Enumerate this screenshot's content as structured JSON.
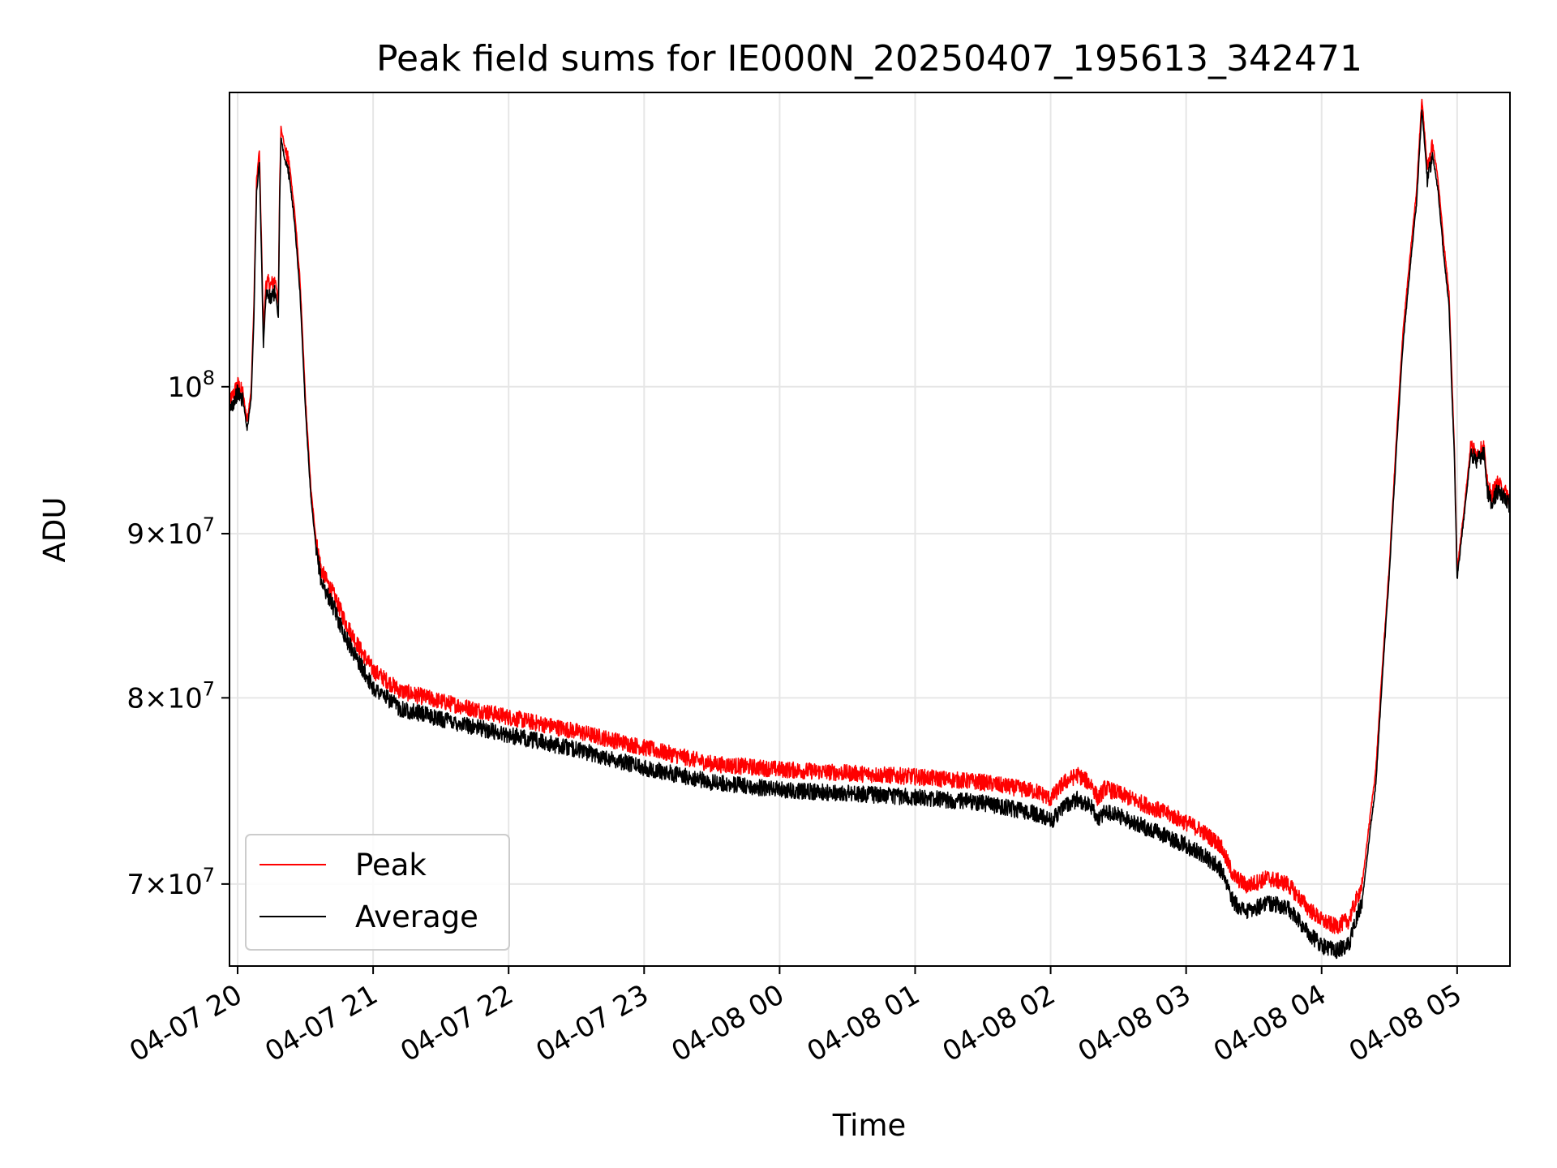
{
  "chart_data": {
    "type": "line",
    "title": "Peak field sums for IE000N_20250407_195613_342471",
    "xlabel": "Time",
    "ylabel": "ADU",
    "x_tick_labels": [
      "04-07 20",
      "04-07 21",
      "04-07 22",
      "04-07 23",
      "04-08 00",
      "04-08 01",
      "04-08 02",
      "04-08 03",
      "04-08 04",
      "04-08 05"
    ],
    "x_ticks_hours": [
      0,
      1,
      2,
      3,
      4,
      5,
      6,
      7,
      8,
      9
    ],
    "y_ticks": [
      {
        "value": 70000000,
        "mant": "7",
        "exp": "7"
      },
      {
        "value": 80000000,
        "mant": "8",
        "exp": "7"
      },
      {
        "value": 90000000,
        "mant": "9",
        "exp": "7"
      },
      {
        "value": 100000000,
        "mant": "",
        "exp": "8"
      }
    ],
    "y_scale": "log",
    "xlim_hours": [
      -0.06,
      9.39
    ],
    "ylim": [
      66000000,
      123500000
    ],
    "grid": true,
    "legend_position": "lower-left",
    "x_axis_base": "04-07 20:00",
    "series": [
      {
        "name": "Peak",
        "color": "#ff0000",
        "points": [
          [
            -0.06,
            98.8
          ],
          [
            0.0,
            100.2
          ],
          [
            0.04,
            99.5
          ],
          [
            0.07,
            97.6
          ],
          [
            0.1,
            99.8
          ],
          [
            0.12,
            106
          ],
          [
            0.14,
            116
          ],
          [
            0.16,
            118.5
          ],
          [
            0.18,
            109
          ],
          [
            0.19,
            104
          ],
          [
            0.21,
            108
          ],
          [
            0.24,
            107.5
          ],
          [
            0.28,
            108
          ],
          [
            0.3,
            106
          ],
          [
            0.31,
            115
          ],
          [
            0.32,
            120.5
          ],
          [
            0.36,
            118
          ],
          [
            0.38,
            117.5
          ],
          [
            0.42,
            113.5
          ],
          [
            0.46,
            108
          ],
          [
            0.5,
            99.2
          ],
          [
            0.54,
            93
          ],
          [
            0.58,
            89.5
          ],
          [
            0.62,
            87.6
          ],
          [
            0.7,
            86.3
          ],
          [
            0.8,
            84.4
          ],
          [
            0.9,
            82.9
          ],
          [
            1.0,
            81.6
          ],
          [
            1.2,
            80.4
          ],
          [
            1.5,
            79.8
          ],
          [
            2.0,
            78.9
          ],
          [
            2.5,
            78.1
          ],
          [
            3.0,
            77.2
          ],
          [
            3.5,
            76.3
          ],
          [
            4.0,
            76.0
          ],
          [
            4.5,
            75.8
          ],
          [
            5.0,
            75.6
          ],
          [
            5.5,
            75.3
          ],
          [
            5.9,
            74.8
          ],
          [
            6.0,
            74.4
          ],
          [
            6.1,
            75.3
          ],
          [
            6.2,
            75.7
          ],
          [
            6.3,
            75.2
          ],
          [
            6.35,
            74.4
          ],
          [
            6.4,
            75.0
          ],
          [
            6.5,
            74.7
          ],
          [
            6.7,
            74.1
          ],
          [
            6.9,
            73.5
          ],
          [
            7.1,
            72.8
          ],
          [
            7.25,
            72.0
          ],
          [
            7.35,
            70.4
          ],
          [
            7.45,
            69.9
          ],
          [
            7.6,
            70.3
          ],
          [
            7.75,
            70.0
          ],
          [
            7.9,
            68.8
          ],
          [
            8.0,
            68.2
          ],
          [
            8.1,
            67.9
          ],
          [
            8.2,
            68.2
          ],
          [
            8.3,
            70.0
          ],
          [
            8.4,
            76.0
          ],
          [
            8.5,
            88.0
          ],
          [
            8.6,
            104
          ],
          [
            8.7,
            115
          ],
          [
            8.74,
            123
          ],
          [
            8.78,
            117
          ],
          [
            8.82,
            119
          ],
          [
            8.86,
            116
          ],
          [
            8.9,
            111
          ],
          [
            8.94,
            107
          ],
          [
            8.96,
            101
          ],
          [
            8.98,
            95.5
          ],
          [
            9.0,
            87.6
          ],
          [
            9.05,
            91.5
          ],
          [
            9.1,
            95.8
          ],
          [
            9.15,
            95.3
          ],
          [
            9.2,
            95.8
          ],
          [
            9.22,
            93.4
          ],
          [
            9.25,
            92.5
          ],
          [
            9.3,
            93.3
          ],
          [
            9.39,
            92.3
          ]
        ]
      },
      {
        "name": "Average",
        "color": "#000000",
        "points": [
          [
            -0.06,
            98.3
          ],
          [
            0.0,
            99.6
          ],
          [
            0.04,
            99.0
          ],
          [
            0.07,
            97.0
          ],
          [
            0.1,
            99.2
          ],
          [
            0.12,
            105
          ],
          [
            0.14,
            115
          ],
          [
            0.16,
            117.5
          ],
          [
            0.18,
            108
          ],
          [
            0.19,
            103
          ],
          [
            0.21,
            107
          ],
          [
            0.24,
            106.5
          ],
          [
            0.28,
            107
          ],
          [
            0.3,
            105
          ],
          [
            0.31,
            114
          ],
          [
            0.32,
            119.5
          ],
          [
            0.36,
            117
          ],
          [
            0.38,
            116.5
          ],
          [
            0.42,
            112.5
          ],
          [
            0.46,
            107
          ],
          [
            0.5,
            98.5
          ],
          [
            0.54,
            92.4
          ],
          [
            0.58,
            88.9
          ],
          [
            0.62,
            86.9
          ],
          [
            0.7,
            85.5
          ],
          [
            0.8,
            83.5
          ],
          [
            0.9,
            82.0
          ],
          [
            1.0,
            80.6
          ],
          [
            1.2,
            79.4
          ],
          [
            1.5,
            78.8
          ],
          [
            2.0,
            77.9
          ],
          [
            2.5,
            77.1
          ],
          [
            3.0,
            76.1
          ],
          [
            3.5,
            75.3
          ],
          [
            4.0,
            74.9
          ],
          [
            4.5,
            74.7
          ],
          [
            5.0,
            74.5
          ],
          [
            5.5,
            74.2
          ],
          [
            5.9,
            73.6
          ],
          [
            6.0,
            73.2
          ],
          [
            6.1,
            74.0
          ],
          [
            6.2,
            74.4
          ],
          [
            6.3,
            74.0
          ],
          [
            6.35,
            73.2
          ],
          [
            6.4,
            73.8
          ],
          [
            6.5,
            73.5
          ],
          [
            6.7,
            72.9
          ],
          [
            6.9,
            72.3
          ],
          [
            7.1,
            71.6
          ],
          [
            7.25,
            70.8
          ],
          [
            7.35,
            69.1
          ],
          [
            7.45,
            68.6
          ],
          [
            7.6,
            69.1
          ],
          [
            7.75,
            68.8
          ],
          [
            7.9,
            67.6
          ],
          [
            8.0,
            67.0
          ],
          [
            8.1,
            66.7
          ],
          [
            8.2,
            67.0
          ],
          [
            8.3,
            69.2
          ],
          [
            8.4,
            75.2
          ],
          [
            8.5,
            87.5
          ],
          [
            8.6,
            103
          ],
          [
            8.7,
            114
          ],
          [
            8.74,
            122
          ],
          [
            8.78,
            116
          ],
          [
            8.82,
            118
          ],
          [
            8.86,
            115
          ],
          [
            8.9,
            110
          ],
          [
            8.94,
            106
          ],
          [
            8.96,
            100
          ],
          [
            8.98,
            95.0
          ],
          [
            9.0,
            87.1
          ],
          [
            9.05,
            91.0
          ],
          [
            9.1,
            95.3
          ],
          [
            9.15,
            94.8
          ],
          [
            9.2,
            95.3
          ],
          [
            9.22,
            92.9
          ],
          [
            9.25,
            92.0
          ],
          [
            9.3,
            92.8
          ],
          [
            9.39,
            91.8
          ]
        ]
      }
    ]
  }
}
